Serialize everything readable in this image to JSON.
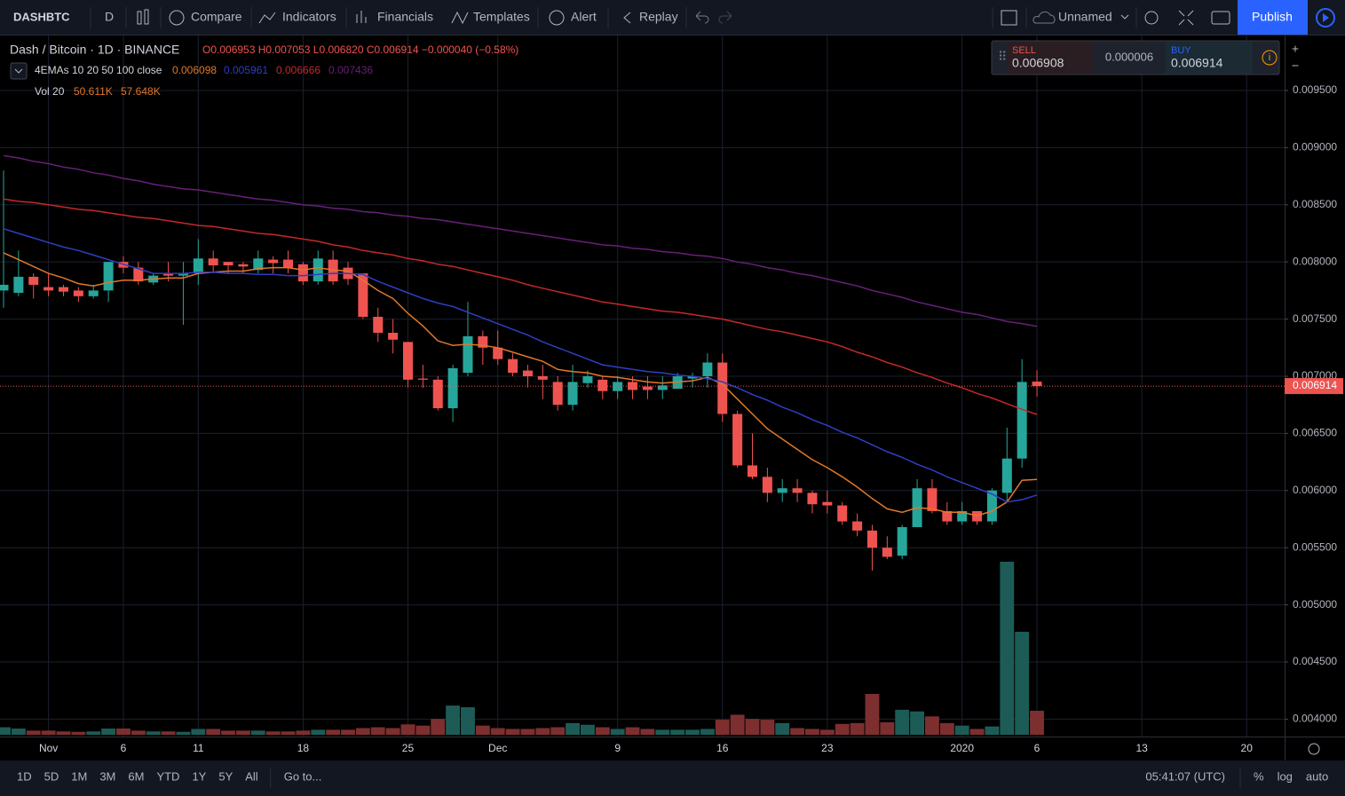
{
  "toolbar": {
    "symbol": "DASHBTC",
    "interval": "D",
    "compare": "Compare",
    "indicators": "Indicators",
    "financials": "Financials",
    "templates": "Templates",
    "alert": "Alert",
    "replay": "Replay",
    "layout_name": "Unnamed",
    "publish": "Publish"
  },
  "legend": {
    "symbol": "Dash / Bitcoin · 1D · BINANCE",
    "ohlc": "O0.006953 H0.007053 L0.006820 C0.006914 −0.000040 (−0.58%)",
    "ema_title": "4EMAs 10 20 50 100 close",
    "ema_values": [
      "0.006098",
      "0.005961",
      "0.006666",
      "0.007436"
    ],
    "vol_title": "Vol 20",
    "vol_values": [
      "50.611K",
      "57.648K"
    ]
  },
  "trade": {
    "sell_label": "SELL",
    "sell_price": "0.006908",
    "spread": "0.000006",
    "buy_label": "BUY",
    "buy_price": "0.006914"
  },
  "bottom_bar": {
    "ranges": [
      "1D",
      "5D",
      "1M",
      "3M",
      "6M",
      "YTD",
      "1Y",
      "5Y",
      "All"
    ],
    "goto": "Go to...",
    "clock": "05:41:07 (UTC)",
    "options": [
      "%",
      "log",
      "auto"
    ]
  },
  "chart_data": {
    "type": "candlestick",
    "up_color": "#26a69a",
    "down_color": "#ef5350",
    "volume_up_color": "#1d5c56",
    "volume_down_color": "#7d2f2f",
    "categories": [
      null,
      null,
      null,
      "Nov",
      null,
      null,
      null,
      null,
      "6",
      null,
      null,
      null,
      null,
      "11",
      null,
      null,
      null,
      null,
      null,
      null,
      "18",
      null,
      null,
      null,
      null,
      null,
      null,
      "25",
      null,
      null,
      null,
      null,
      null,
      "Dec",
      null,
      null,
      null,
      null,
      null,
      null,
      null,
      "9",
      null,
      null,
      null,
      null,
      null,
      null,
      "16",
      null,
      null,
      null,
      null,
      null,
      null,
      "23",
      null,
      null,
      null,
      null,
      null,
      null,
      null,
      null,
      "2020",
      null,
      null,
      null,
      null,
      "6",
      null,
      null,
      null,
      null,
      null,
      null,
      "13",
      null,
      null,
      null,
      null,
      null,
      null,
      "20",
      null,
      null
    ],
    "open": [
      0.00775,
      0.00773,
      0.00787,
      0.00778,
      0.00778,
      0.00775,
      0.0077,
      0.00775,
      0.008,
      0.00795,
      0.00782,
      0.0079,
      0.00788,
      0.0079,
      0.00803,
      0.008,
      0.00798,
      0.00793,
      0.00802,
      0.00802,
      0.00798,
      0.00783,
      0.00802,
      0.00795,
      0.0079,
      0.00752,
      0.00738,
      0.0073,
      0.00698,
      0.00697,
      0.00672,
      0.00703,
      0.00735,
      0.00725,
      0.00715,
      0.00705,
      0.007,
      0.00695,
      0.00675,
      0.00694,
      0.00697,
      0.00687,
      0.00695,
      0.00691,
      0.00688,
      0.00689,
      0.00698,
      0.007,
      0.00712,
      0.00667,
      0.00622,
      0.00612,
      0.00598,
      0.00602,
      0.00598,
      0.0059,
      0.00587,
      0.00573,
      0.00565,
      0.0055,
      0.00543,
      0.00568,
      0.00602,
      0.00582,
      0.00573,
      0.00582,
      0.00573,
      0.00598,
      0.00628,
      0.006953,
      null,
      null,
      null,
      null,
      null,
      null,
      null,
      null,
      null,
      null,
      null,
      null,
      null,
      null,
      null,
      null
    ],
    "high": [
      0.0088,
      0.0081,
      0.0079,
      0.0079,
      0.0078,
      0.00778,
      0.0078,
      0.008,
      0.00805,
      0.008,
      0.0079,
      0.008,
      0.008,
      0.0082,
      0.0081,
      0.008,
      0.008,
      0.0081,
      0.00805,
      0.0081,
      0.008,
      0.0081,
      0.0081,
      0.008,
      0.0079,
      0.0076,
      0.0075,
      0.0073,
      0.0071,
      0.007,
      0.0071,
      0.00765,
      0.0074,
      0.0074,
      0.0072,
      0.0071,
      0.0071,
      0.007,
      0.0071,
      0.00705,
      0.007,
      0.007,
      0.007,
      0.007,
      0.007,
      0.00703,
      0.00703,
      0.0072,
      0.0072,
      0.0067,
      0.0065,
      0.0062,
      0.0061,
      0.0061,
      0.006,
      0.006,
      0.0059,
      0.0058,
      0.0057,
      0.0056,
      0.0057,
      0.0061,
      0.0061,
      0.0059,
      0.0059,
      0.0058,
      0.00602,
      0.00655,
      0.00715,
      0.007053,
      null,
      null,
      null,
      null,
      null,
      null,
      null,
      null,
      null,
      null,
      null,
      null,
      null,
      null,
      null,
      null
    ],
    "low": [
      0.0076,
      0.0077,
      0.00768,
      0.0077,
      0.0077,
      0.00765,
      0.00768,
      0.00765,
      0.0079,
      0.0078,
      0.0078,
      0.00783,
      0.00745,
      0.0078,
      0.0079,
      0.0079,
      0.0079,
      0.0079,
      0.0079,
      0.0079,
      0.0078,
      0.0078,
      0.0078,
      0.0078,
      0.0075,
      0.0073,
      0.0072,
      0.0069,
      0.0069,
      0.0067,
      0.0066,
      0.007,
      0.0071,
      0.0071,
      0.007,
      0.0069,
      0.0068,
      0.0067,
      0.0067,
      0.0069,
      0.0068,
      0.0068,
      0.0068,
      0.0068,
      0.0068,
      0.0069,
      0.0069,
      0.0069,
      0.0066,
      0.0062,
      0.0061,
      0.0059,
      0.0059,
      0.0059,
      0.0058,
      0.0058,
      0.0057,
      0.0056,
      0.0053,
      0.0054,
      0.0054,
      0.0057,
      0.0058,
      0.0057,
      0.0057,
      0.0057,
      0.0057,
      0.0059,
      0.0062,
      0.00682,
      null,
      null,
      null,
      null,
      null,
      null,
      null,
      null,
      null,
      null,
      null,
      null,
      null,
      null,
      null,
      null
    ],
    "close": [
      0.0078,
      0.00787,
      0.0078,
      0.00775,
      0.00774,
      0.0077,
      0.00775,
      0.008,
      0.00795,
      0.00783,
      0.00788,
      0.00788,
      0.0079,
      0.00803,
      0.00797,
      0.00797,
      0.00796,
      0.00803,
      0.00799,
      0.00795,
      0.00783,
      0.00803,
      0.00783,
      0.00785,
      0.00752,
      0.00738,
      0.00732,
      0.00697,
      0.00697,
      0.00672,
      0.00707,
      0.00735,
      0.00725,
      0.00715,
      0.00703,
      0.007,
      0.00697,
      0.00675,
      0.00695,
      0.007,
      0.00687,
      0.00695,
      0.00688,
      0.00688,
      0.00692,
      0.007,
      0.007,
      0.00712,
      0.00667,
      0.00622,
      0.00612,
      0.00598,
      0.00602,
      0.00598,
      0.00588,
      0.00587,
      0.00573,
      0.00565,
      0.0055,
      0.00542,
      0.00568,
      0.00602,
      0.00582,
      0.00573,
      0.00582,
      0.00573,
      0.006,
      0.00628,
      0.00695,
      0.006914,
      null,
      null,
      null,
      null,
      null,
      null,
      null,
      null,
      null,
      null,
      null,
      null,
      null,
      null,
      null,
      null
    ],
    "volume": [
      18000,
      15000,
      10000,
      10000,
      8000,
      7000,
      8000,
      15000,
      15000,
      10000,
      8000,
      8000,
      7000,
      14000,
      14000,
      10000,
      10000,
      10000,
      8000,
      8000,
      10000,
      12000,
      12000,
      12000,
      16000,
      18000,
      16000,
      25000,
      22000,
      38000,
      70000,
      66000,
      22000,
      16000,
      14000,
      14000,
      16000,
      18000,
      28000,
      24000,
      18000,
      14000,
      18000,
      14000,
      12000,
      12000,
      12000,
      14000,
      36000,
      48000,
      38000,
      36000,
      28000,
      16000,
      14000,
      12000,
      26000,
      28000,
      98000,
      30000,
      60000,
      56000,
      44000,
      28000,
      22000,
      14000,
      20000,
      415000,
      247000,
      57648,
      null,
      null,
      null,
      null,
      null,
      null,
      null,
      null,
      null,
      null,
      null,
      null,
      null,
      null,
      null,
      null
    ],
    "series": [
      {
        "name": "EMA 10",
        "color": "#e0782a",
        "values": [
          0.00808,
          0.00802,
          0.00796,
          0.0079,
          0.00786,
          0.00781,
          0.00779,
          0.00782,
          0.00784,
          0.00784,
          0.00785,
          0.00786,
          0.00786,
          0.0079,
          0.00791,
          0.00792,
          0.00792,
          0.00794,
          0.00795,
          0.00795,
          0.00793,
          0.00795,
          0.00793,
          0.00792,
          0.00784,
          0.00775,
          0.00768,
          0.00755,
          0.00744,
          0.00731,
          0.00727,
          0.00728,
          0.00727,
          0.00725,
          0.00721,
          0.00717,
          0.00713,
          0.00706,
          0.00704,
          0.00703,
          0.007,
          0.00699,
          0.00697,
          0.00695,
          0.00694,
          0.00695,
          0.00696,
          0.00699,
          0.00693,
          0.0068,
          0.00667,
          0.00654,
          0.00645,
          0.00636,
          0.00627,
          0.0062,
          0.00612,
          0.00603,
          0.00593,
          0.00584,
          0.00581,
          0.00585,
          0.00584,
          0.00581,
          0.00581,
          0.00578,
          0.00582,
          0.0059,
          0.00609,
          0.006098,
          null,
          null,
          null,
          null,
          null,
          null,
          null,
          null,
          null,
          null,
          null,
          null,
          null,
          null,
          null,
          null
        ]
      },
      {
        "name": "EMA 20",
        "color": "#2f3ec4",
        "values": [
          0.00829,
          0.00825,
          0.00821,
          0.00817,
          0.00813,
          0.0081,
          0.00806,
          0.00802,
          0.00798,
          0.00794,
          0.0079,
          0.0079,
          0.0079,
          0.00791,
          0.00791,
          0.0079,
          0.0079,
          0.00789,
          0.00789,
          0.00788,
          0.00788,
          0.00789,
          0.0079,
          0.0079,
          0.00789,
          0.00783,
          0.00778,
          0.00773,
          0.00768,
          0.00764,
          0.00761,
          0.00756,
          0.00751,
          0.00746,
          0.00741,
          0.00736,
          0.0073,
          0.00725,
          0.0072,
          0.00715,
          0.0071,
          0.00708,
          0.00706,
          0.00704,
          0.00703,
          0.00701,
          0.007,
          0.00698,
          0.00695,
          0.0069,
          0.00684,
          0.00679,
          0.00673,
          0.00668,
          0.00662,
          0.00657,
          0.00651,
          0.00646,
          0.0064,
          0.00634,
          0.00629,
          0.00623,
          0.00618,
          0.00612,
          0.00607,
          0.00602,
          0.00597,
          0.0059,
          0.00592,
          0.005961,
          null,
          null,
          null,
          null,
          null,
          null,
          null,
          null,
          null,
          null,
          null,
          null,
          null,
          null,
          null,
          null
        ]
      },
      {
        "name": "EMA 50",
        "color": "#c62828",
        "values": [
          0.00855,
          0.00853,
          0.00852,
          0.0085,
          0.00848,
          0.00846,
          0.00845,
          0.00843,
          0.00841,
          0.00839,
          0.00838,
          0.00836,
          0.00834,
          0.00832,
          0.00831,
          0.00829,
          0.00827,
          0.00825,
          0.00824,
          0.00822,
          0.0082,
          0.00818,
          0.00815,
          0.00813,
          0.0081,
          0.00808,
          0.00806,
          0.00803,
          0.00801,
          0.00798,
          0.00796,
          0.00793,
          0.0079,
          0.00787,
          0.00784,
          0.0078,
          0.00777,
          0.00774,
          0.00771,
          0.00768,
          0.00765,
          0.00763,
          0.00761,
          0.00759,
          0.00757,
          0.00756,
          0.00754,
          0.00752,
          0.0075,
          0.00747,
          0.00744,
          0.00741,
          0.00739,
          0.00736,
          0.00733,
          0.0073,
          0.00726,
          0.00721,
          0.00717,
          0.00712,
          0.00708,
          0.00703,
          0.00699,
          0.00694,
          0.0069,
          0.00685,
          0.00681,
          0.00676,
          0.00671,
          0.006666,
          null,
          null,
          null,
          null,
          null,
          null,
          null,
          null,
          null,
          null,
          null,
          null,
          null,
          null,
          null,
          null
        ]
      },
      {
        "name": "EMA 100",
        "color": "#6a1f7a",
        "values": [
          0.00893,
          0.00891,
          0.00888,
          0.00886,
          0.00883,
          0.00881,
          0.00878,
          0.00876,
          0.00873,
          0.00871,
          0.00868,
          0.00866,
          0.00864,
          0.00863,
          0.00861,
          0.00859,
          0.00857,
          0.00855,
          0.00854,
          0.00852,
          0.0085,
          0.00849,
          0.00847,
          0.00846,
          0.00844,
          0.00843,
          0.00841,
          0.0084,
          0.00838,
          0.00837,
          0.00835,
          0.00833,
          0.00831,
          0.00829,
          0.00827,
          0.00825,
          0.00823,
          0.00821,
          0.00819,
          0.00817,
          0.00815,
          0.00814,
          0.00812,
          0.00811,
          0.00809,
          0.00808,
          0.00806,
          0.00805,
          0.00803,
          0.008,
          0.00798,
          0.00795,
          0.00793,
          0.0079,
          0.00788,
          0.00785,
          0.00782,
          0.00779,
          0.00775,
          0.00772,
          0.00769,
          0.00765,
          0.00762,
          0.00759,
          0.00756,
          0.00754,
          0.00751,
          0.00748,
          0.00746,
          0.007436,
          null,
          null,
          null,
          null,
          null,
          null,
          null,
          null,
          null,
          null,
          null,
          null,
          null,
          null,
          null,
          null
        ]
      }
    ],
    "ylim": [
      0.003848,
      0.009981
    ],
    "yticks": [
      {
        "value": 0.0095,
        "label": "0.009500"
      },
      {
        "value": 0.009,
        "label": "0.009000"
      },
      {
        "value": 0.0085,
        "label": "0.008500"
      },
      {
        "value": 0.008,
        "label": "0.008000"
      },
      {
        "value": 0.0075,
        "label": "0.007500"
      },
      {
        "value": 0.007,
        "label": "0.007000"
      },
      {
        "value": 0.0065,
        "label": "0.006500"
      },
      {
        "value": 0.006,
        "label": "0.006000"
      },
      {
        "value": 0.0055,
        "label": "0.005500"
      },
      {
        "value": 0.005,
        "label": "0.005000"
      },
      {
        "value": 0.0045,
        "label": "0.004500"
      },
      {
        "value": 0.004,
        "label": "0.004000"
      }
    ],
    "price_tag": {
      "value": 0.006914,
      "label": "0.006914"
    },
    "grid": true
  }
}
